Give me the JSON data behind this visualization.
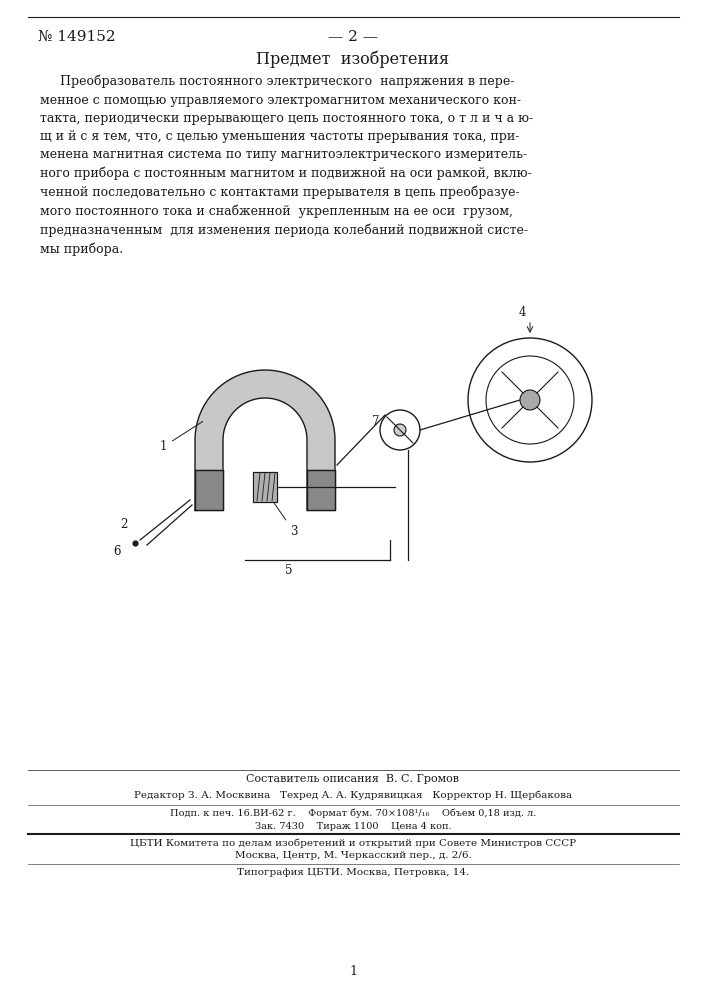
{
  "bg_color": "#ffffff",
  "patent_number": "№ 149152",
  "page_number": "— 2 —",
  "section_title": "Предмет  изобретения",
  "composer_line": "Составитель описания  В. С. Громов",
  "editor_line": "Редактор З. А. Москвина   Техред А. А. Кудрявицкая   Корректор Н. Щербакова",
  "print_line": "Подп. к печ. 16.ВИ-62 г.    Формат бум. 70×108¹/₁₆    Объем 0,18 изд. л.",
  "order_line": "Зак. 7430    Тираж 1100    Цена 4 коп.",
  "org_line": "ЦБТИ Комитета по делам изобретений и открытий при Совете Министров СССР",
  "address_line": "Москва, Центр, М. Черкасский пер., д. 2/6.",
  "typo_line": "Типография ЦБТИ. Москва, Петровка, 14.",
  "page_num_bottom": "1",
  "text_color": "#1a1a1a"
}
